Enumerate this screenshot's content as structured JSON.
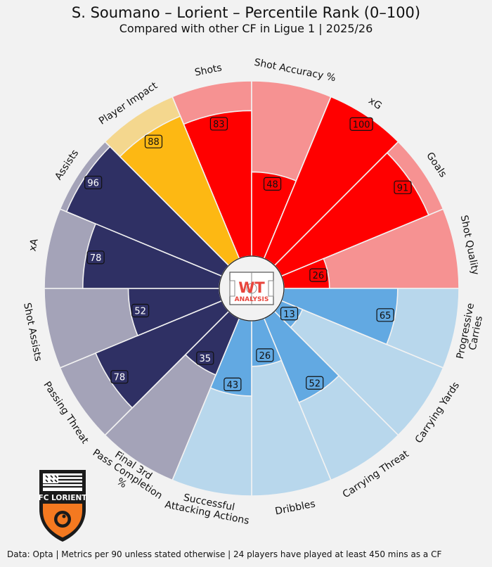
{
  "title": "S. Soumano – Lorient – Percentile Rank (0–100)",
  "subtitle": "Compared with other CF in Ligue 1 | 2025/26",
  "footer": "Data: Opta | Metrics per 90 unless stated otherwise | 24 players have played at least 450 mins as a CF",
  "center_logo": {
    "line1": "WT",
    "line2": "ANALYSIS"
  },
  "club_logo": {
    "text": "FC LORIENT"
  },
  "colors": {
    "background": "#f2f2f2",
    "shooting": "#ff0000",
    "shooting_bg": "#f69292",
    "creation": "#2f3064",
    "creation_bg": "#a4a3b8",
    "impact": "#fdb813",
    "impact_bg": "#f4d78e",
    "carrying": "#62a9e2",
    "carrying_bg": "#b8d7ec"
  },
  "chart_data": {
    "type": "polar-bar",
    "ylim": [
      0,
      100
    ],
    "series": [
      {
        "metric": "Shots",
        "value": 83,
        "group": "shooting"
      },
      {
        "metric": "Shot Accuracy %",
        "value": 48,
        "group": "shooting"
      },
      {
        "metric": "xG",
        "value": 100,
        "group": "shooting"
      },
      {
        "metric": "Goals",
        "value": 91,
        "group": "shooting"
      },
      {
        "metric": "Shot Quality",
        "value": 26,
        "group": "shooting"
      },
      {
        "metric": "Progressive Carries",
        "value": 65,
        "group": "carrying"
      },
      {
        "metric": "Carrying Yards",
        "value": 13,
        "group": "carrying"
      },
      {
        "metric": "Carrying Threat",
        "value": 52,
        "group": "carrying"
      },
      {
        "metric": "Dribbles",
        "value": 26,
        "group": "carrying"
      },
      {
        "metric": "Successful Attacking Actions",
        "value": 43,
        "group": "carrying"
      },
      {
        "metric": "Final 3rd Pass Completion %",
        "value": 35,
        "group": "creation"
      },
      {
        "metric": "Passing Threat",
        "value": 78,
        "group": "creation"
      },
      {
        "metric": "Shot Assists",
        "value": 52,
        "group": "creation"
      },
      {
        "metric": "xA",
        "value": 78,
        "group": "creation"
      },
      {
        "metric": "Assists",
        "value": 96,
        "group": "creation"
      },
      {
        "metric": "Player Impact",
        "value": 88,
        "group": "impact"
      }
    ]
  }
}
